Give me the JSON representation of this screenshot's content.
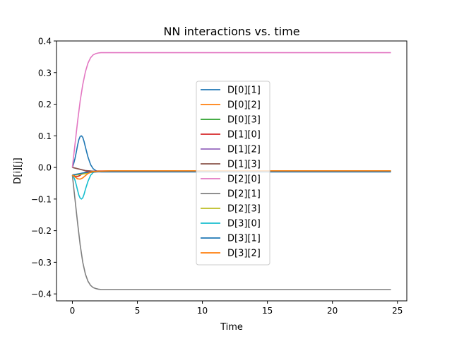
{
  "chart_data": {
    "type": "line",
    "title": "NN interactions vs. time",
    "xlabel": "Time",
    "ylabel": "D[i][j]",
    "xlim": [
      -1.22,
      25.72
    ],
    "ylim": [
      -0.422,
      0.4
    ],
    "xticks": [
      0,
      5,
      10,
      15,
      20,
      25
    ],
    "xtick_labels": [
      "0",
      "5",
      "10",
      "15",
      "20",
      "25"
    ],
    "yticks": [
      -0.4,
      -0.3,
      -0.2,
      -0.1,
      0.0,
      0.1,
      0.2,
      0.3,
      0.4
    ],
    "ytick_labels": [
      "−0.4",
      "−0.3",
      "−0.2",
      "−0.1",
      "0.0",
      "0.1",
      "0.2",
      "0.3",
      "0.4"
    ],
    "grid": false,
    "legend_position": "center",
    "series": [
      {
        "name": "D[0][1]",
        "color": "#1f77b4",
        "x": [
          0,
          0.1,
          0.2,
          0.3,
          0.4,
          0.5,
          0.6,
          0.7,
          0.8,
          0.9,
          1.0,
          1.2,
          1.4,
          1.6,
          1.8,
          2.0,
          2.2,
          2.5,
          3.0,
          5,
          10,
          15,
          20,
          24.5
        ],
        "y": [
          0.0,
          0.012,
          0.028,
          0.048,
          0.07,
          0.088,
          0.098,
          0.1,
          0.095,
          0.082,
          0.065,
          0.033,
          0.009,
          -0.004,
          -0.01,
          -0.013,
          -0.014,
          -0.014,
          -0.014,
          -0.014,
          -0.014,
          -0.014,
          -0.014,
          -0.014
        ]
      },
      {
        "name": "D[0][2]",
        "color": "#ff7f0e",
        "x": [
          0,
          0.5,
          1.0,
          1.5,
          2.0,
          3.0,
          5,
          10,
          15,
          20,
          24.5
        ],
        "y": [
          -0.024,
          -0.022,
          -0.018,
          -0.014,
          -0.012,
          -0.011,
          -0.011,
          -0.011,
          -0.011,
          -0.011,
          -0.011
        ]
      },
      {
        "name": "D[0][3]",
        "color": "#2ca02c",
        "x": [
          0,
          0.5,
          1.0,
          1.5,
          2.0,
          3.0,
          5,
          10,
          15,
          20,
          24.5
        ],
        "y": [
          -0.024,
          -0.023,
          -0.019,
          -0.015,
          -0.013,
          -0.012,
          -0.012,
          -0.012,
          -0.012,
          -0.012,
          -0.012
        ]
      },
      {
        "name": "D[1][0]",
        "color": "#d62728",
        "x": [
          0,
          0.2,
          0.4,
          0.6,
          0.8,
          1.0,
          1.2,
          1.5,
          2.0,
          3.0,
          5,
          10,
          15,
          20,
          24.5
        ],
        "y": [
          -0.024,
          -0.028,
          -0.029,
          -0.025,
          -0.019,
          -0.015,
          -0.013,
          -0.012,
          -0.011,
          -0.011,
          -0.011,
          -0.011,
          -0.011,
          -0.011,
          -0.011
        ]
      },
      {
        "name": "D[1][2]",
        "color": "#9467bd",
        "x": [
          0,
          1.0,
          2.0,
          5,
          10,
          15,
          20,
          24.5
        ],
        "y": [
          0.0,
          -0.01,
          -0.013,
          -0.013,
          -0.013,
          -0.013,
          -0.013,
          -0.013
        ]
      },
      {
        "name": "D[1][3]",
        "color": "#8c564b",
        "x": [
          0,
          1.0,
          2.0,
          5,
          10,
          15,
          20,
          24.5
        ],
        "y": [
          0.0,
          -0.01,
          -0.013,
          -0.013,
          -0.013,
          -0.013,
          -0.013,
          -0.013
        ]
      },
      {
        "name": "D[2][0]",
        "color": "#e377c2",
        "x": [
          0,
          0.2,
          0.4,
          0.6,
          0.8,
          1.0,
          1.2,
          1.4,
          1.6,
          1.8,
          2.0,
          2.2,
          2.5,
          3.0,
          5,
          10,
          15,
          20,
          24.5
        ],
        "y": [
          0.0,
          0.072,
          0.145,
          0.21,
          0.262,
          0.302,
          0.33,
          0.347,
          0.356,
          0.36,
          0.362,
          0.363,
          0.363,
          0.363,
          0.363,
          0.363,
          0.363,
          0.363,
          0.363
        ]
      },
      {
        "name": "D[2][1]",
        "color": "#7f7f7f",
        "x": [
          0,
          0.2,
          0.4,
          0.6,
          0.8,
          1.0,
          1.2,
          1.4,
          1.6,
          1.8,
          2.0,
          2.2,
          2.5,
          3.0,
          5,
          10,
          15,
          20,
          24.5
        ],
        "y": [
          -0.024,
          -0.1,
          -0.175,
          -0.245,
          -0.3,
          -0.337,
          -0.36,
          -0.373,
          -0.38,
          -0.383,
          -0.385,
          -0.386,
          -0.386,
          -0.386,
          -0.386,
          -0.386,
          -0.386,
          -0.386,
          -0.386
        ]
      },
      {
        "name": "D[2][3]",
        "color": "#bcbd22",
        "x": [
          0,
          0.5,
          1.0,
          1.5,
          2.0,
          3.0,
          5,
          10,
          15,
          20,
          24.5
        ],
        "y": [
          -0.024,
          -0.023,
          -0.019,
          -0.014,
          -0.012,
          -0.011,
          -0.011,
          -0.011,
          -0.011,
          -0.011,
          -0.011
        ]
      },
      {
        "name": "D[3][0]",
        "color": "#17becf",
        "x": [
          0,
          0.1,
          0.2,
          0.3,
          0.4,
          0.5,
          0.6,
          0.7,
          0.8,
          0.9,
          1.0,
          1.2,
          1.4,
          1.6,
          1.8,
          2.0,
          2.2,
          2.5,
          3.0,
          5,
          10,
          15,
          20,
          24.5
        ],
        "y": [
          -0.024,
          -0.03,
          -0.04,
          -0.055,
          -0.072,
          -0.088,
          -0.097,
          -0.1,
          -0.096,
          -0.085,
          -0.07,
          -0.044,
          -0.025,
          -0.016,
          -0.013,
          -0.012,
          -0.012,
          -0.012,
          -0.012,
          -0.012,
          -0.012,
          -0.012,
          -0.012,
          -0.012
        ]
      },
      {
        "name": "D[3][1]",
        "color": "#1f77b4",
        "x": [
          0,
          1.0,
          2.0,
          5,
          10,
          15,
          20,
          24.5
        ],
        "y": [
          -0.024,
          -0.016,
          -0.014,
          -0.014,
          -0.014,
          -0.014,
          -0.014,
          -0.014
        ]
      },
      {
        "name": "D[3][2]",
        "color": "#ff7f0e",
        "x": [
          0,
          0.2,
          0.4,
          0.6,
          0.8,
          1.0,
          1.2,
          1.5,
          2.0,
          3.0,
          5,
          10,
          15,
          20,
          24.5
        ],
        "y": [
          -0.024,
          -0.03,
          -0.036,
          -0.037,
          -0.033,
          -0.026,
          -0.019,
          -0.014,
          -0.012,
          -0.011,
          -0.011,
          -0.011,
          -0.011,
          -0.011,
          -0.011
        ]
      }
    ]
  }
}
